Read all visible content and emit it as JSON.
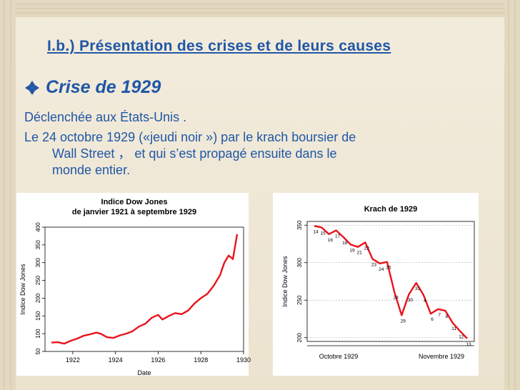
{
  "slide": {
    "title": "I.b.) Présentation des crises et de leurs causes",
    "subtitle": "Crise de 1929",
    "line1": "Déclenchée aux États-Unis .",
    "line2": "Le 24 octobre 1929 («jeudi noir ») par le krach boursier de",
    "line3": "Wall Street ， et qui s’est propagé ensuite dans le",
    "line4": "monde entier.",
    "accent_color": "#1f57a6"
  },
  "chart_data": [
    {
      "type": "line",
      "title": "Indice Dow Jones",
      "subtitle": "de janvier 1921 à septembre 1929",
      "xlabel": "Date",
      "ylabel": "Indice Dow Jones",
      "xlim": [
        1920.7,
        1930
      ],
      "ylim": [
        50,
        400
      ],
      "xticks": [
        1922,
        1924,
        1926,
        1928,
        1930
      ],
      "yticks": [
        50,
        100,
        150,
        200,
        250,
        300,
        350,
        400
      ],
      "line_color": "#e8141c",
      "x": [
        1921.0,
        1921.3,
        1921.6,
        1921.9,
        1922.2,
        1922.5,
        1922.8,
        1923.1,
        1923.3,
        1923.6,
        1923.9,
        1924.2,
        1924.5,
        1924.8,
        1925.1,
        1925.4,
        1925.7,
        1926.0,
        1926.2,
        1926.5,
        1926.8,
        1927.1,
        1927.4,
        1927.7,
        1928.0,
        1928.3,
        1928.6,
        1928.9,
        1929.1,
        1929.3,
        1929.5,
        1929.6,
        1929.7
      ],
      "y": [
        75,
        76,
        72,
        80,
        86,
        94,
        98,
        103,
        100,
        90,
        88,
        95,
        100,
        107,
        120,
        128,
        145,
        153,
        140,
        150,
        158,
        155,
        165,
        185,
        200,
        212,
        235,
        265,
        300,
        320,
        310,
        345,
        380
      ]
    },
    {
      "type": "line",
      "title": "Krach de 1929",
      "xlabel": "",
      "ylabel": "Indice Dow Jones",
      "ylim": [
        195,
        355
      ],
      "yticks": [
        200,
        250,
        300,
        350
      ],
      "xtick_labels": [
        "Octobre 1929",
        "Novembre 1929"
      ],
      "line_color": "#e8141c",
      "points": [
        {
          "day": 14,
          "value": 349
        },
        {
          "day": 15,
          "value": 347
        },
        {
          "day": 16,
          "value": 338
        },
        {
          "day": 17,
          "value": 343
        },
        {
          "day": 18,
          "value": 334
        },
        {
          "day": 19,
          "value": 324
        },
        {
          "day": 21,
          "value": 321
        },
        {
          "day": 22,
          "value": 327
        },
        {
          "day": 23,
          "value": 305
        },
        {
          "day": 24,
          "value": 299
        },
        {
          "day": 25,
          "value": 301
        },
        {
          "day": 28,
          "value": 261
        },
        {
          "day": 29,
          "value": 230
        },
        {
          "day": 30,
          "value": 258
        },
        {
          "day": 31,
          "value": 273
        },
        {
          "day": 4,
          "value": 257
        },
        {
          "day": 6,
          "value": 232
        },
        {
          "day": 7,
          "value": 238
        },
        {
          "day": 8,
          "value": 236
        },
        {
          "day": 11,
          "value": 220
        },
        {
          "day": 12,
          "value": 209
        },
        {
          "day": 13,
          "value": 199
        }
      ]
    }
  ]
}
